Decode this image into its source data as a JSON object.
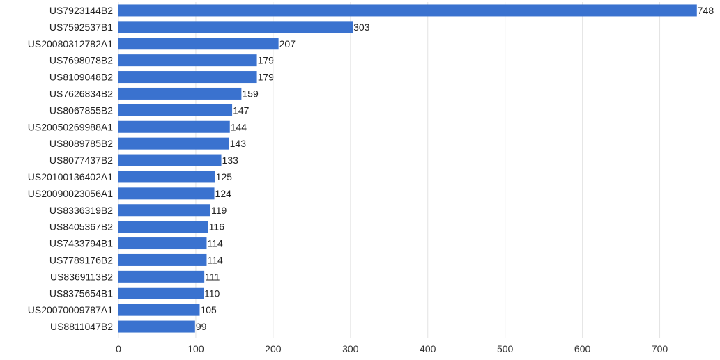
{
  "chart_data": {
    "type": "bar",
    "orientation": "horizontal",
    "categories": [
      "US7923144B2",
      "US7592537B1",
      "US20080312782A1",
      "US7698078B2",
      "US8109048B2",
      "US7626834B2",
      "US8067855B2",
      "US20050269988A1",
      "US8089785B2",
      "US8077437B2",
      "US20100136402A1",
      "US20090023056A1",
      "US8336319B2",
      "US8405367B2",
      "US7433794B1",
      "US7789176B2",
      "US8369113B2",
      "US8375654B1",
      "US20070009787A1",
      "US8811047B2"
    ],
    "values": [
      748,
      303,
      207,
      179,
      179,
      159,
      147,
      144,
      143,
      133,
      125,
      124,
      119,
      116,
      114,
      114,
      111,
      110,
      105,
      99
    ],
    "xlim": [
      0,
      750
    ],
    "xticks": [
      0,
      100,
      200,
      300,
      400,
      500,
      600,
      700
    ],
    "grid": "vertical",
    "title": "",
    "xlabel": "",
    "ylabel": "",
    "bar_color": "#3a72cf",
    "grid_color": "#e3e3e3"
  }
}
